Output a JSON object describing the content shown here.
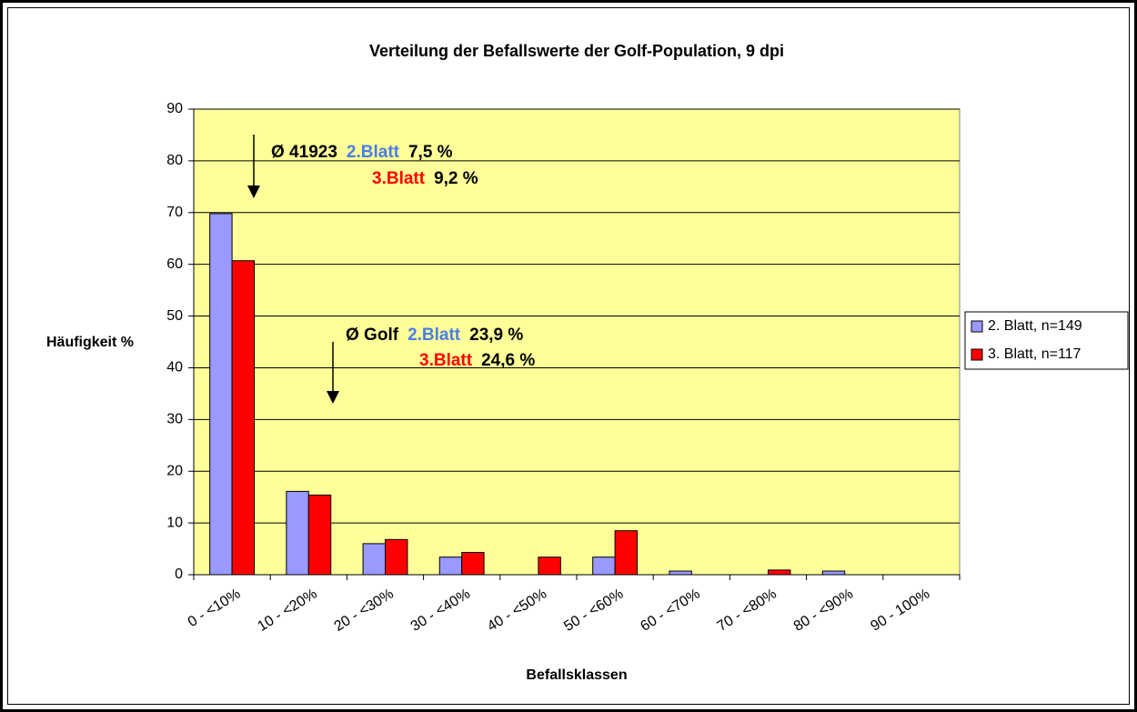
{
  "chart_data": {
    "type": "bar",
    "title": "Verteilung der Befallswerte der Golf-Population, 9 dpi",
    "y_label": "Häufigkeit %",
    "x_label": "Befallsklassen",
    "categories": [
      "0 - <10%",
      "10 - <20%",
      "20 - <30%",
      "30 - <40%",
      "40 - <50%",
      "50 - <60%",
      "60 - <70%",
      "70 - <80%",
      "80 - <90%",
      "90 - 100%"
    ],
    "series": [
      {
        "name": "2. Blatt, n=149",
        "color": "#9999ff",
        "values": [
          69.8,
          16.1,
          6.0,
          3.4,
          0,
          3.4,
          0.7,
          0,
          0.7,
          0
        ]
      },
      {
        "name": "3. Blatt, n=117",
        "color": "#ff0000",
        "values": [
          60.7,
          15.4,
          6.8,
          4.3,
          3.4,
          8.5,
          0,
          0.9,
          0,
          0
        ]
      }
    ],
    "ylim": [
      0,
      90
    ],
    "yticks": [
      0,
      10,
      20,
      30,
      40,
      50,
      60,
      70,
      80,
      90
    ],
    "grid": true,
    "plot_background": "#ffff99",
    "legend": "right",
    "annotations": [
      {
        "lines": [
          [
            {
              "text": "Ø 41923"
            },
            {
              "text": "2.Blatt",
              "color": "#4a7ee8"
            },
            {
              "text": "7,5 %"
            }
          ],
          [
            {
              "text": "3.Blatt",
              "color": "#ff0000"
            },
            {
              "text": "9,2 %"
            }
          ]
        ]
      },
      {
        "lines": [
          [
            {
              "text": "Ø Golf"
            },
            {
              "text": "2.Blatt",
              "color": "#4a7ee8"
            },
            {
              "text": "23,9 %"
            }
          ],
          [
            {
              "text": "3.Blatt",
              "color": "#ff0000"
            },
            {
              "text": "24,6 %"
            }
          ]
        ]
      }
    ]
  }
}
